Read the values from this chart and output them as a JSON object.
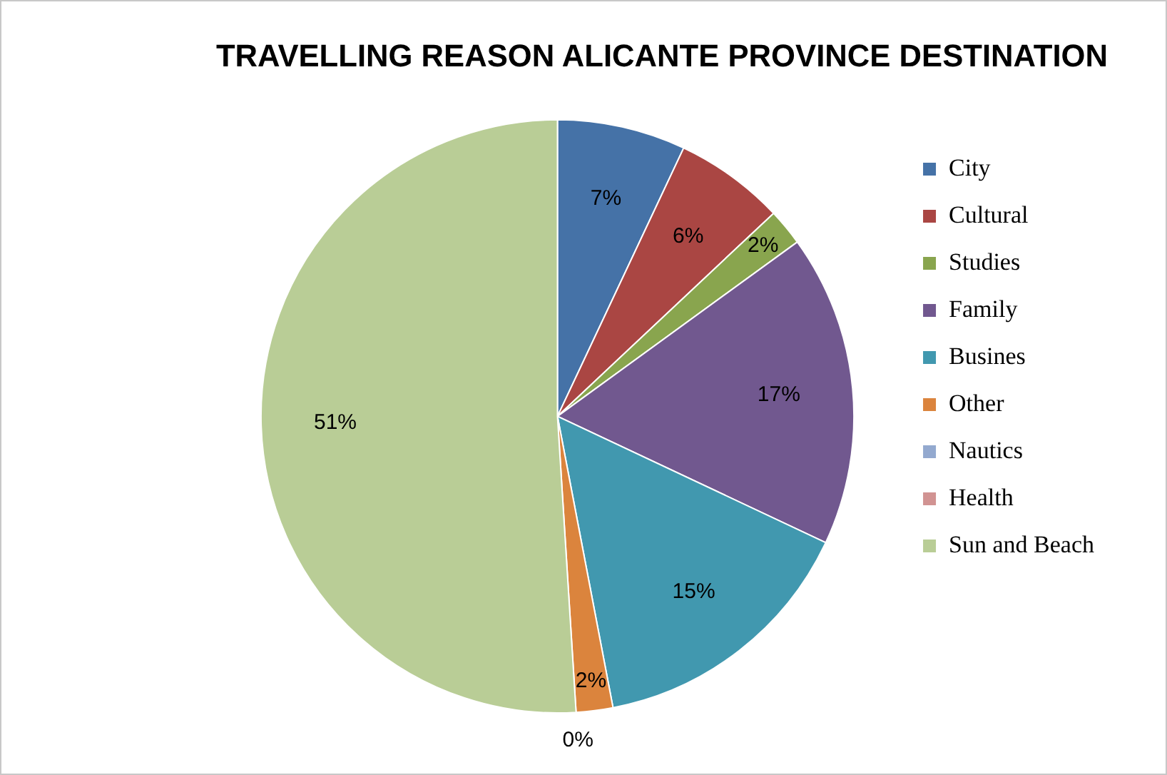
{
  "chart_data": {
    "type": "pie",
    "title": "TRAVELLING REASON ALICANTE PROVINCE DESTINATION",
    "categories": [
      "City",
      "Cultural",
      "Studies",
      "Family",
      "Busines",
      "Other",
      "Nautics",
      "Health",
      "Sun and Beach"
    ],
    "values": [
      7,
      6,
      2,
      17,
      15,
      2,
      0,
      0,
      51
    ],
    "colors": [
      "#4572a7",
      "#aa4643",
      "#89a54e",
      "#71588f",
      "#4198af",
      "#db843d",
      "#93a9cf",
      "#d19392",
      "#b9cd96"
    ],
    "value_labels": [
      "7%",
      "6%",
      "2%",
      "17%",
      "15%",
      "2%",
      null,
      "0%",
      "51%"
    ],
    "legend": "right"
  }
}
